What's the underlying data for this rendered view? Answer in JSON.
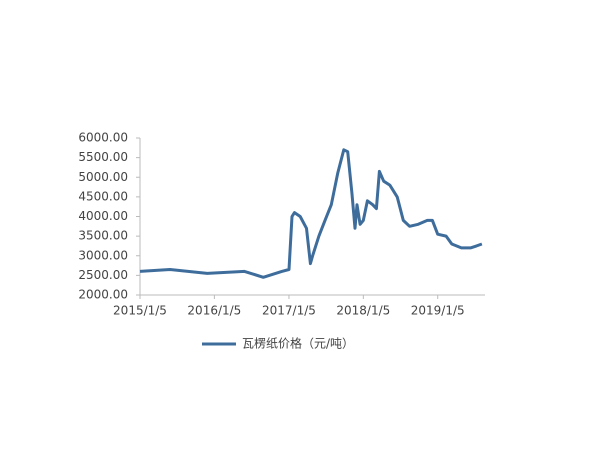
{
  "chart_data": {
    "type": "line",
    "x": [
      "2015/1/5",
      "2015/6/1",
      "2015/12/1",
      "2016/6/1",
      "2016/9/1",
      "2016/12/1",
      "2017/1/5",
      "2017/1/20",
      "2017/2/1",
      "2017/3/1",
      "2017/4/1",
      "2017/4/20",
      "2017/5/1",
      "2017/6/1",
      "2017/7/1",
      "2017/8/1",
      "2017/9/1",
      "2017/10/1",
      "2017/10/20",
      "2017/11/10",
      "2017/11/25",
      "2017/12/5",
      "2017/12/20",
      "2018/1/5",
      "2018/1/25",
      "2018/2/20",
      "2018/3/10",
      "2018/3/25",
      "2018/4/15",
      "2018/5/15",
      "2018/6/20",
      "2018/7/20",
      "2018/8/20",
      "2018/10/1",
      "2018/11/15",
      "2018/12/10",
      "2019/1/5",
      "2019/2/15",
      "2019/3/15",
      "2019/5/1",
      "2019/6/15",
      "2019/7/15",
      "2019/8/10"
    ],
    "series": [
      {
        "name": "瓦楞纸价格（元/吨）",
        "color": "#3e6d9c",
        "values": [
          2600,
          2650,
          2550,
          2600,
          2450,
          2600,
          2650,
          4000,
          4100,
          4000,
          3700,
          2800,
          3000,
          3500,
          3900,
          4300,
          5100,
          5700,
          5650,
          4600,
          3700,
          4300,
          3800,
          3900,
          4400,
          4300,
          4200,
          5150,
          4900,
          4800,
          4500,
          3900,
          3750,
          3800,
          3900,
          3900,
          3550,
          3500,
          3300,
          3200,
          3200,
          3250,
          3300
        ]
      }
    ],
    "xlim": [
      "2015/1/5",
      "2019/8/25"
    ],
    "xticks": [
      "2015/1/5",
      "2016/1/5",
      "2017/1/5",
      "2018/1/5",
      "2019/1/5"
    ],
    "ylim": [
      2000,
      6000
    ],
    "yticks": [
      {
        "value": 2000,
        "label": "2000.00"
      },
      {
        "value": 2500,
        "label": "2500.00"
      },
      {
        "value": 3000,
        "label": "3000.00"
      },
      {
        "value": 3500,
        "label": "3500.00"
      },
      {
        "value": 4000,
        "label": "4000.00"
      },
      {
        "value": 4500,
        "label": "4500.00"
      },
      {
        "value": 5000,
        "label": "5000.00"
      },
      {
        "value": 5500,
        "label": "5500.00"
      },
      {
        "value": 6000,
        "label": "6000.00"
      }
    ],
    "legend": "bottom"
  }
}
